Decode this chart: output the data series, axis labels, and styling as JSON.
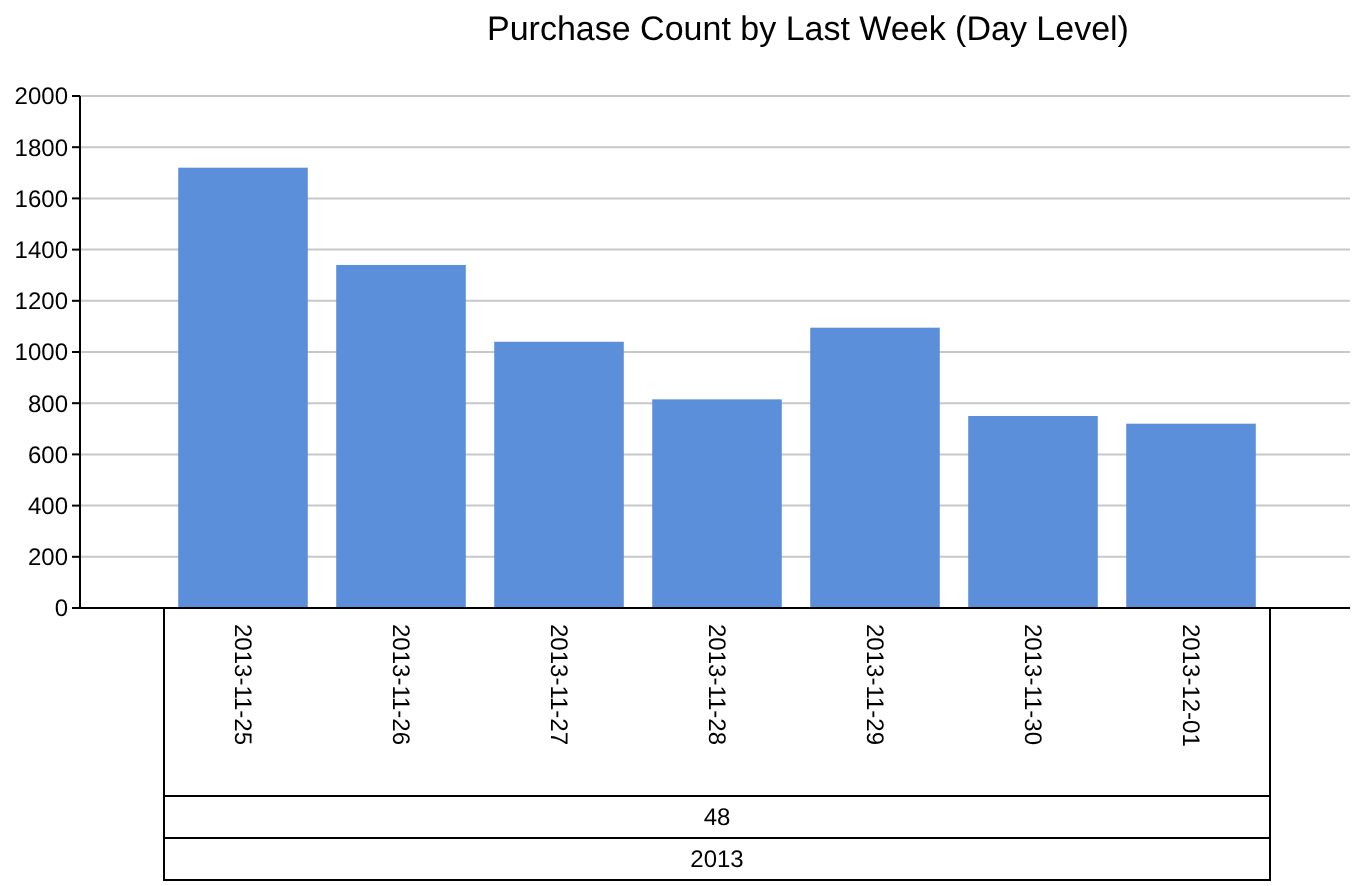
{
  "chart_data": {
    "type": "bar",
    "title": "Purchase Count by Last Week (Day Level)",
    "categories": [
      "2013-11-25",
      "2013-11-26",
      "2013-11-27",
      "2013-11-28",
      "2013-11-29",
      "2013-11-30",
      "2013-12-01"
    ],
    "values": [
      1720,
      1340,
      1040,
      815,
      1095,
      750,
      720
    ],
    "color": "#5b8fd9",
    "ylim": [
      0,
      2000
    ],
    "yticks": [
      0,
      200,
      400,
      600,
      800,
      1000,
      1200,
      1400,
      1600,
      1800,
      2000
    ],
    "grid": "y",
    "annotations": [
      "48",
      "2013"
    ]
  }
}
